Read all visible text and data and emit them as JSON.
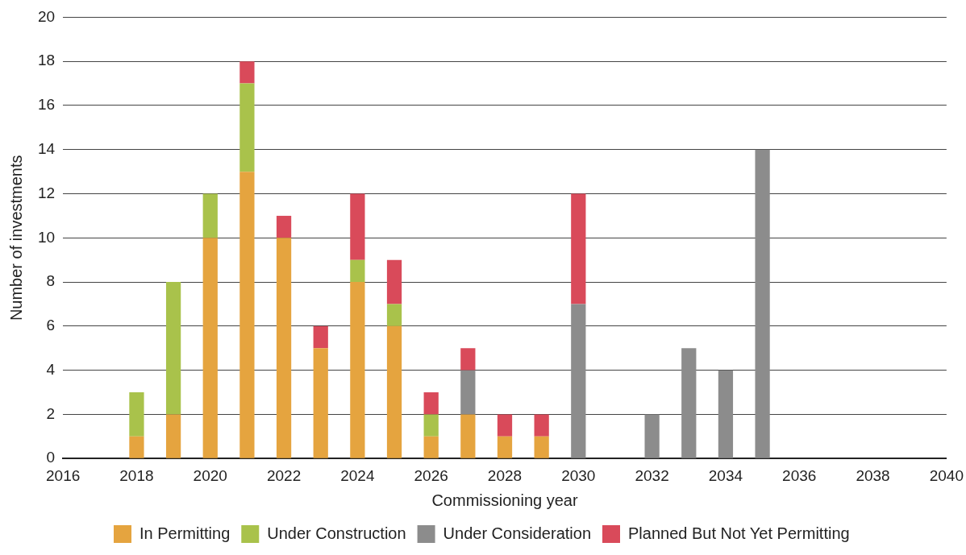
{
  "chart_data": {
    "type": "bar",
    "stacked": true,
    "xlabel": "Commissioning year",
    "ylabel": "Number of investments",
    "categories": [
      "2016",
      null,
      "2018",
      null,
      "2020",
      null,
      "2022",
      null,
      "2024",
      null,
      "2026",
      null,
      "2028",
      null,
      "2030",
      null,
      "2032",
      null,
      "2034",
      null,
      "2036",
      null,
      "2038",
      null,
      "2040"
    ],
    "series": [
      {
        "name": "In Permitting",
        "color": "#e5a43f",
        "values": [
          null,
          null,
          1,
          2,
          10,
          13,
          10,
          5,
          8,
          6,
          1,
          2,
          1,
          1,
          null,
          null,
          null,
          null,
          null,
          null,
          null,
          null,
          null,
          null,
          null
        ]
      },
      {
        "name": "Under Construction",
        "color": "#a9c24b",
        "values": [
          null,
          null,
          2,
          6,
          2,
          4,
          null,
          null,
          1,
          1,
          1,
          null,
          null,
          null,
          null,
          null,
          null,
          null,
          null,
          null,
          null,
          null,
          null,
          null,
          null
        ]
      },
      {
        "name": "Under Consideration",
        "color": "#8c8c8c",
        "values": [
          null,
          null,
          null,
          null,
          null,
          null,
          null,
          null,
          null,
          null,
          null,
          2,
          null,
          null,
          7,
          null,
          2,
          5,
          4,
          14,
          null,
          null,
          null,
          null,
          null
        ]
      },
      {
        "name": "Planned But Not Yet Permitting",
        "color": "#d94a5a",
        "values": [
          null,
          null,
          null,
          null,
          null,
          1,
          1,
          1,
          3,
          2,
          1,
          1,
          1,
          1,
          5,
          null,
          null,
          null,
          null,
          null,
          null,
          null,
          null,
          null,
          null
        ]
      }
    ],
    "ylim": [
      0,
      20
    ],
    "yticks": [
      0,
      2,
      4,
      6,
      8,
      10,
      12,
      14,
      16,
      18,
      20
    ],
    "grid": "y",
    "legend": "bottom"
  }
}
